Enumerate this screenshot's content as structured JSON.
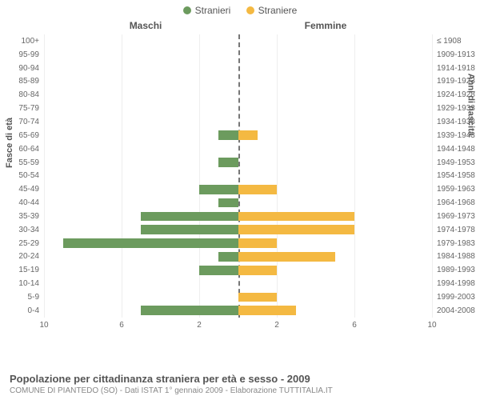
{
  "legend": {
    "male": {
      "label": "Stranieri",
      "color": "#6c9b5e"
    },
    "female": {
      "label": "Straniere",
      "color": "#f4b942"
    }
  },
  "headers": {
    "male": "Maschi",
    "female": "Femmine"
  },
  "axis_titles": {
    "left": "Fasce di età",
    "right": "Anni di nascita"
  },
  "chart": {
    "type": "population-pyramid",
    "max_value": 10,
    "x_ticks": [
      10,
      6,
      2,
      2,
      6,
      10
    ],
    "grid_color": "#eeeeee",
    "center_line_color": "#777777",
    "background_color": "#ffffff",
    "label_fontsize": 10,
    "rows": [
      {
        "age": "100+",
        "birth": "≤ 1908",
        "m": 0,
        "f": 0
      },
      {
        "age": "95-99",
        "birth": "1909-1913",
        "m": 0,
        "f": 0
      },
      {
        "age": "90-94",
        "birth": "1914-1918",
        "m": 0,
        "f": 0
      },
      {
        "age": "85-89",
        "birth": "1919-1923",
        "m": 0,
        "f": 0
      },
      {
        "age": "80-84",
        "birth": "1924-1928",
        "m": 0,
        "f": 0
      },
      {
        "age": "75-79",
        "birth": "1929-1933",
        "m": 0,
        "f": 0
      },
      {
        "age": "70-74",
        "birth": "1934-1938",
        "m": 0,
        "f": 0
      },
      {
        "age": "65-69",
        "birth": "1939-1943",
        "m": 1,
        "f": 1
      },
      {
        "age": "60-64",
        "birth": "1944-1948",
        "m": 0,
        "f": 0
      },
      {
        "age": "55-59",
        "birth": "1949-1953",
        "m": 1,
        "f": 0
      },
      {
        "age": "50-54",
        "birth": "1954-1958",
        "m": 0,
        "f": 0
      },
      {
        "age": "45-49",
        "birth": "1959-1963",
        "m": 2,
        "f": 2
      },
      {
        "age": "40-44",
        "birth": "1964-1968",
        "m": 1,
        "f": 0
      },
      {
        "age": "35-39",
        "birth": "1969-1973",
        "m": 5,
        "f": 6
      },
      {
        "age": "30-34",
        "birth": "1974-1978",
        "m": 5,
        "f": 6
      },
      {
        "age": "25-29",
        "birth": "1979-1983",
        "m": 9,
        "f": 2
      },
      {
        "age": "20-24",
        "birth": "1984-1988",
        "m": 1,
        "f": 5
      },
      {
        "age": "15-19",
        "birth": "1989-1993",
        "m": 2,
        "f": 2
      },
      {
        "age": "10-14",
        "birth": "1994-1998",
        "m": 0,
        "f": 0
      },
      {
        "age": "5-9",
        "birth": "1999-2003",
        "m": 0,
        "f": 2
      },
      {
        "age": "0-4",
        "birth": "2004-2008",
        "m": 5,
        "f": 3
      }
    ]
  },
  "footer": {
    "title": "Popolazione per cittadinanza straniera per età e sesso - 2009",
    "subtitle": "COMUNE DI PIANTEDO (SO) - Dati ISTAT 1° gennaio 2009 - Elaborazione TUTTITALIA.IT"
  }
}
